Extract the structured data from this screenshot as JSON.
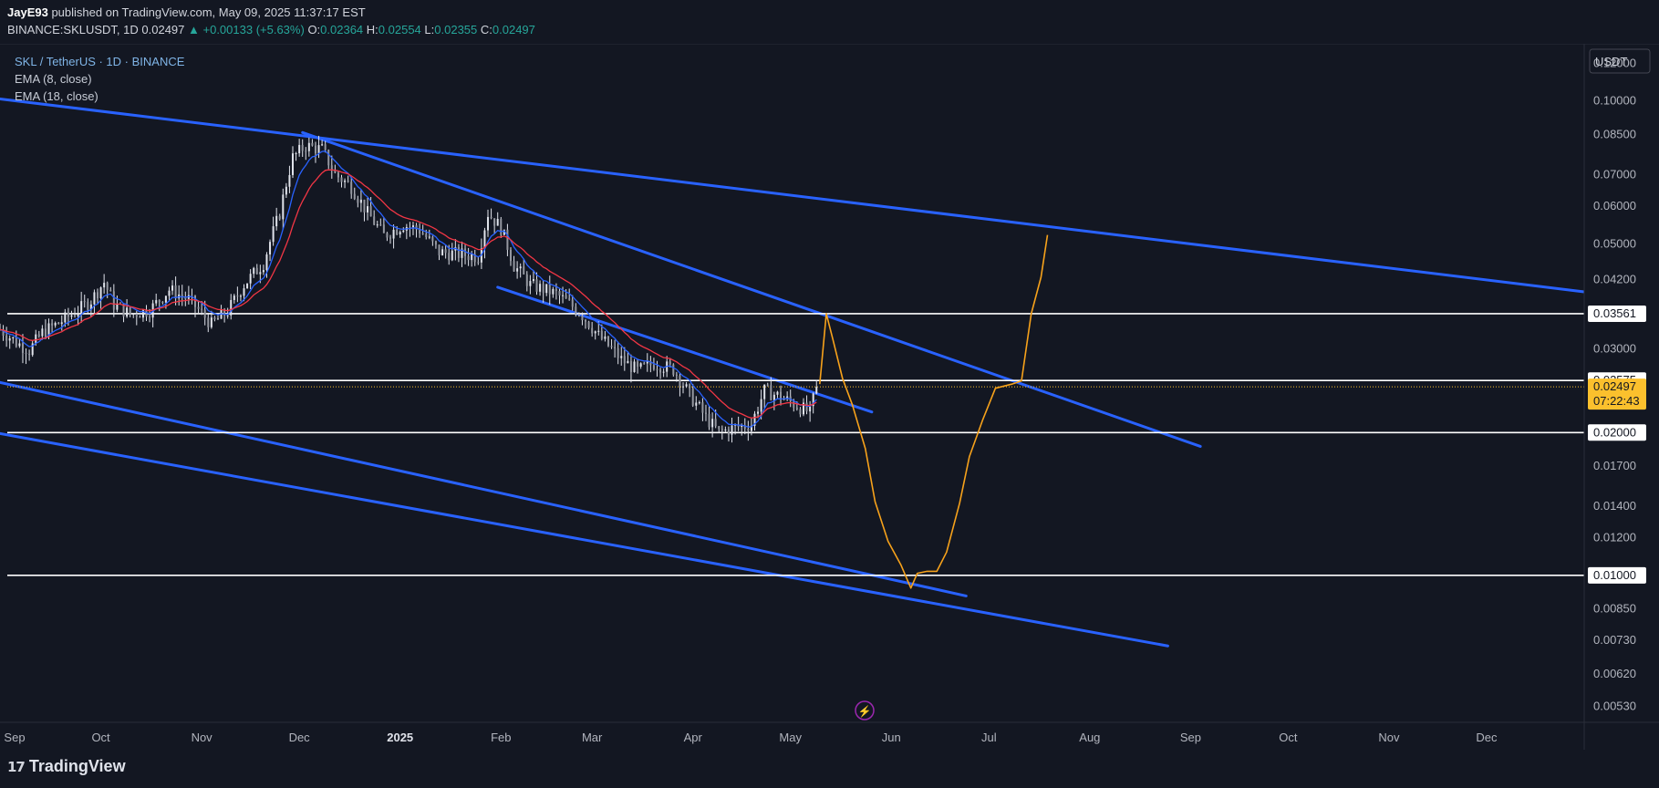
{
  "header": {
    "author": "JayE93",
    "published_text": " published on TradingView.com, May 09, 2025 11:37:17 EST",
    "symbol_line": "BINANCE:SKLUSDT, 1D",
    "price": "0.02497",
    "change": "▲ +0.00133 (+5.63%)",
    "o_label": "O:",
    "o_value": "0.02364",
    "h_label": "H:",
    "h_value": "0.02554",
    "l_label": "L:",
    "l_value": "0.02355",
    "c_label": "C:",
    "c_value": "0.02497"
  },
  "legend": {
    "symbol": "SKL / TetherUS · 1D · BINANCE",
    "ema_fast": "EMA (8, close)",
    "ema_slow": "EMA (18, close)"
  },
  "price_scale": {
    "currency": "USDT",
    "ticks": [
      "0.12000",
      "0.10000",
      "0.08500",
      "0.07000",
      "0.06000",
      "0.05000",
      "0.04200",
      "0.03000",
      "0.01700",
      "0.01400",
      "0.01200",
      "0.00850",
      "0.00730",
      "0.00620",
      "0.00530"
    ],
    "highlighted": [
      "0.03561",
      "0.02575",
      "0.02000",
      "0.01000"
    ],
    "current_price": "0.02497",
    "countdown": "07:22:43"
  },
  "time_axis": {
    "labels": [
      "Sep",
      "Oct",
      "Nov",
      "Dec",
      "2025",
      "Feb",
      "Mar",
      "Apr",
      "May",
      "Jun",
      "Jul",
      "Aug",
      "Sep",
      "Oct",
      "Nov",
      "Dec"
    ]
  },
  "footer": {
    "brand": "TradingView",
    "logo_mark": "17"
  },
  "colors": {
    "background": "#131722",
    "trendline": "#2962ff",
    "horizontal_line": "#ffffff",
    "projection": "#f7a21b",
    "ema_fast": "#2962ff",
    "ema_slow": "#f23645",
    "candle": "#e0e3eb",
    "price_badge": "#fbc02d"
  },
  "chart_data": {
    "type": "candlestick",
    "scale": "log",
    "ylim": [
      0.0049,
      0.132
    ],
    "x_range": [
      "2024-08-31",
      "2025-12-31"
    ],
    "horizontal_levels": [
      0.03561,
      0.02575,
      0.02,
      0.01
    ],
    "trendlines": [
      {
        "from": [
          "2024-08-31",
          0.101
        ],
        "to": [
          "2025-12-31",
          0.0396
        ]
      },
      {
        "from": [
          "2024-12-02",
          0.0858
        ],
        "to": [
          "2025-09-04",
          0.0187
        ]
      },
      {
        "from": [
          "2025-01-31",
          0.0405
        ],
        "to": [
          "2025-05-26",
          0.0221
        ]
      },
      {
        "from": [
          "2024-08-31",
          0.0255
        ],
        "to": [
          "2025-06-24",
          0.00905
        ]
      },
      {
        "from": [
          "2024-08-31",
          0.0199
        ],
        "to": [
          "2025-08-25",
          0.0071
        ]
      }
    ],
    "projection": [
      [
        "2025-05-10",
        0.0253
      ],
      [
        "2025-05-12",
        0.0356
      ],
      [
        "2025-05-14",
        0.0315
      ],
      [
        "2025-05-17",
        0.026
      ],
      [
        "2025-05-20",
        0.0229
      ],
      [
        "2025-05-24",
        0.0185
      ],
      [
        "2025-05-27",
        0.0143
      ],
      [
        "2025-05-31",
        0.0118
      ],
      [
        "2025-06-04",
        0.0105
      ],
      [
        "2025-06-07",
        0.0094
      ],
      [
        "2025-06-09",
        0.0101
      ],
      [
        "2025-06-12",
        0.0102
      ],
      [
        "2025-06-15",
        0.0102
      ],
      [
        "2025-06-18",
        0.0112
      ],
      [
        "2025-06-22",
        0.0142
      ],
      [
        "2025-06-25",
        0.0178
      ],
      [
        "2025-06-29",
        0.0212
      ],
      [
        "2025-07-03",
        0.0248
      ],
      [
        "2025-07-08",
        0.0253
      ],
      [
        "2025-07-11",
        0.0257
      ],
      [
        "2025-07-14",
        0.0356
      ],
      [
        "2025-07-17",
        0.0425
      ],
      [
        "2025-07-19",
        0.0522
      ]
    ],
    "price_path": [
      [
        "2024-08-31",
        0.033
      ],
      [
        "2024-09-05",
        0.031
      ],
      [
        "2024-09-09",
        0.0298
      ],
      [
        "2024-09-13",
        0.0325
      ],
      [
        "2024-09-18",
        0.034
      ],
      [
        "2024-09-24",
        0.0362
      ],
      [
        "2024-09-28",
        0.038
      ],
      [
        "2024-10-02",
        0.0415
      ],
      [
        "2024-10-05",
        0.0372
      ],
      [
        "2024-10-10",
        0.0355
      ],
      [
        "2024-10-16",
        0.0362
      ],
      [
        "2024-10-22",
        0.04
      ],
      [
        "2024-10-28",
        0.0382
      ],
      [
        "2024-11-04",
        0.0338
      ],
      [
        "2024-11-09",
        0.036
      ],
      [
        "2024-11-14",
        0.041
      ],
      [
        "2024-11-20",
        0.0455
      ],
      [
        "2024-11-25",
        0.058
      ],
      [
        "2024-11-29",
        0.076
      ],
      [
        "2024-12-03",
        0.0805
      ],
      [
        "2024-12-08",
        0.079
      ],
      [
        "2024-12-12",
        0.07
      ],
      [
        "2024-12-17",
        0.066
      ],
      [
        "2024-12-22",
        0.058
      ],
      [
        "2024-12-27",
        0.052
      ],
      [
        "2025-01-02",
        0.0548
      ],
      [
        "2025-01-07",
        0.0535
      ],
      [
        "2025-01-13",
        0.048
      ],
      [
        "2025-01-20",
        0.0475
      ],
      [
        "2025-01-25",
        0.047
      ],
      [
        "2025-01-28",
        0.058
      ],
      [
        "2025-02-01",
        0.054
      ],
      [
        "2025-02-05",
        0.045
      ],
      [
        "2025-02-10",
        0.041
      ],
      [
        "2025-02-18",
        0.0392
      ],
      [
        "2025-02-25",
        0.036
      ],
      [
        "2025-03-03",
        0.032
      ],
      [
        "2025-03-10",
        0.0285
      ],
      [
        "2025-03-15",
        0.027
      ],
      [
        "2025-03-20",
        0.028
      ],
      [
        "2025-03-26",
        0.0272
      ],
      [
        "2025-03-31",
        0.024
      ],
      [
        "2025-04-05",
        0.0215
      ],
      [
        "2025-04-09",
        0.02
      ],
      [
        "2025-04-14",
        0.0205
      ],
      [
        "2025-04-19",
        0.0208
      ],
      [
        "2025-04-23",
        0.0245
      ],
      [
        "2025-04-28",
        0.0238
      ],
      [
        "2025-05-03",
        0.0228
      ],
      [
        "2025-05-07",
        0.022
      ],
      [
        "2025-05-09",
        0.02497
      ]
    ]
  }
}
